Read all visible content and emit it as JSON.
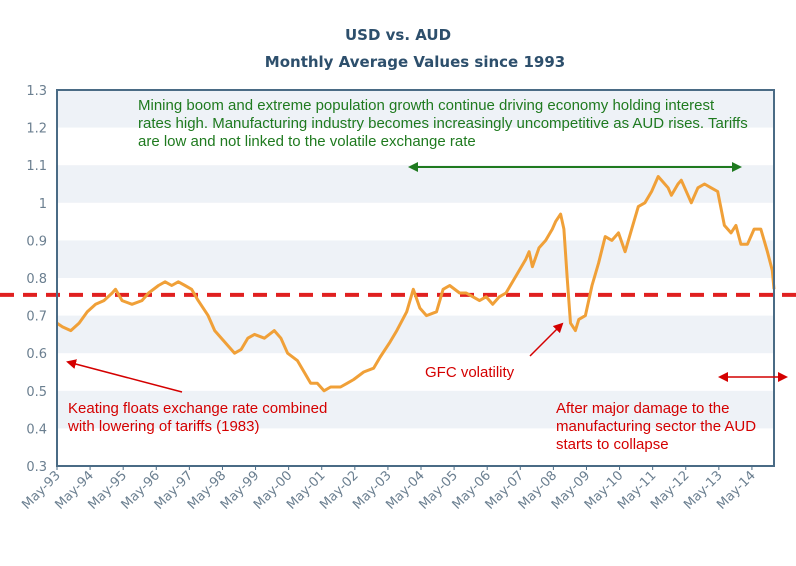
{
  "colors": {
    "line": "#f0a038",
    "threshold": "#e02020",
    "green": "#1f7a1f",
    "red": "#d40000",
    "band": "#eef2f7",
    "axis": "#4a6b85",
    "title": "#2d4f6c"
  },
  "chart_data": {
    "type": "line",
    "title": "USD vs. AUD",
    "subtitle": "Monthly Average Values since 1993",
    "ylim": [
      0.3,
      1.3
    ],
    "yticks": [
      0.3,
      0.4,
      0.5,
      0.6,
      0.7,
      0.8,
      0.9,
      1,
      1.1,
      1.2,
      1.3
    ],
    "xlim": [
      1993.333,
      2015.0
    ],
    "xticks": [
      {
        "label": "May-93",
        "x": 1993.333
      },
      {
        "label": "May-94",
        "x": 1994.333
      },
      {
        "label": "May-95",
        "x": 1995.333
      },
      {
        "label": "May-96",
        "x": 1996.333
      },
      {
        "label": "May-97",
        "x": 1997.333
      },
      {
        "label": "May-98",
        "x": 1998.333
      },
      {
        "label": "May-99",
        "x": 1999.333
      },
      {
        "label": "May-00",
        "x": 2000.333
      },
      {
        "label": "May-01",
        "x": 2001.333
      },
      {
        "label": "May-02",
        "x": 2002.333
      },
      {
        "label": "May-03",
        "x": 2003.333
      },
      {
        "label": "May-04",
        "x": 2004.333
      },
      {
        "label": "May-05",
        "x": 2005.333
      },
      {
        "label": "May-06",
        "x": 2006.333
      },
      {
        "label": "May-07",
        "x": 2007.333
      },
      {
        "label": "May-08",
        "x": 2008.333
      },
      {
        "label": "May-09",
        "x": 2009.333
      },
      {
        "label": "May-10",
        "x": 2010.333
      },
      {
        "label": "May-11",
        "x": 2011.333
      },
      {
        "label": "May-12",
        "x": 2012.333
      },
      {
        "label": "May-13",
        "x": 2013.333
      },
      {
        "label": "May-14",
        "x": 2014.333
      }
    ],
    "grid": "alternating horizontal bands",
    "reference_line": {
      "y": 0.755,
      "style": "dashed"
    },
    "series": [
      {
        "points": [
          [
            1993.33,
            0.68
          ],
          [
            1993.5,
            0.67
          ],
          [
            1993.75,
            0.66
          ],
          [
            1994.0,
            0.68
          ],
          [
            1994.25,
            0.71
          ],
          [
            1994.5,
            0.73
          ],
          [
            1994.75,
            0.74
          ],
          [
            1995.0,
            0.76
          ],
          [
            1995.1,
            0.77
          ],
          [
            1995.3,
            0.74
          ],
          [
            1995.6,
            0.73
          ],
          [
            1995.9,
            0.74
          ],
          [
            1996.1,
            0.76
          ],
          [
            1996.4,
            0.78
          ],
          [
            1996.6,
            0.79
          ],
          [
            1996.8,
            0.78
          ],
          [
            1997.0,
            0.79
          ],
          [
            1997.2,
            0.78
          ],
          [
            1997.4,
            0.77
          ],
          [
            1997.6,
            0.74
          ],
          [
            1997.9,
            0.7
          ],
          [
            1998.1,
            0.66
          ],
          [
            1998.3,
            0.64
          ],
          [
            1998.5,
            0.62
          ],
          [
            1998.7,
            0.6
          ],
          [
            1998.9,
            0.61
          ],
          [
            1999.1,
            0.64
          ],
          [
            1999.3,
            0.65
          ],
          [
            1999.6,
            0.64
          ],
          [
            1999.9,
            0.66
          ],
          [
            2000.1,
            0.64
          ],
          [
            2000.3,
            0.6
          ],
          [
            2000.6,
            0.58
          ],
          [
            2000.8,
            0.55
          ],
          [
            2001.0,
            0.52
          ],
          [
            2001.2,
            0.52
          ],
          [
            2001.4,
            0.5
          ],
          [
            2001.6,
            0.51
          ],
          [
            2001.9,
            0.51
          ],
          [
            2002.1,
            0.52
          ],
          [
            2002.3,
            0.53
          ],
          [
            2002.6,
            0.55
          ],
          [
            2002.9,
            0.56
          ],
          [
            2003.1,
            0.59
          ],
          [
            2003.4,
            0.63
          ],
          [
            2003.6,
            0.66
          ],
          [
            2003.9,
            0.71
          ],
          [
            2004.1,
            0.77
          ],
          [
            2004.3,
            0.72
          ],
          [
            2004.5,
            0.7
          ],
          [
            2004.8,
            0.71
          ],
          [
            2005.0,
            0.77
          ],
          [
            2005.2,
            0.78
          ],
          [
            2005.5,
            0.76
          ],
          [
            2005.7,
            0.76
          ],
          [
            2005.9,
            0.75
          ],
          [
            2006.1,
            0.74
          ],
          [
            2006.3,
            0.75
          ],
          [
            2006.5,
            0.73
          ],
          [
            2006.7,
            0.75
          ],
          [
            2006.9,
            0.76
          ],
          [
            2007.1,
            0.79
          ],
          [
            2007.3,
            0.82
          ],
          [
            2007.5,
            0.85
          ],
          [
            2007.6,
            0.87
          ],
          [
            2007.7,
            0.83
          ],
          [
            2007.9,
            0.88
          ],
          [
            2008.1,
            0.9
          ],
          [
            2008.3,
            0.93
          ],
          [
            2008.4,
            0.95
          ],
          [
            2008.55,
            0.97
          ],
          [
            2008.65,
            0.93
          ],
          [
            2008.75,
            0.8
          ],
          [
            2008.85,
            0.68
          ],
          [
            2009.0,
            0.66
          ],
          [
            2009.1,
            0.69
          ],
          [
            2009.3,
            0.7
          ],
          [
            2009.5,
            0.78
          ],
          [
            2009.7,
            0.84
          ],
          [
            2009.9,
            0.91
          ],
          [
            2010.1,
            0.9
          ],
          [
            2010.3,
            0.92
          ],
          [
            2010.5,
            0.87
          ],
          [
            2010.7,
            0.93
          ],
          [
            2010.9,
            0.99
          ],
          [
            2011.1,
            1.0
          ],
          [
            2011.3,
            1.03
          ],
          [
            2011.5,
            1.07
          ],
          [
            2011.6,
            1.06
          ],
          [
            2011.8,
            1.04
          ],
          [
            2011.9,
            1.02
          ],
          [
            2012.1,
            1.05
          ],
          [
            2012.2,
            1.06
          ],
          [
            2012.4,
            1.02
          ],
          [
            2012.5,
            1.0
          ],
          [
            2012.7,
            1.04
          ],
          [
            2012.9,
            1.05
          ],
          [
            2013.1,
            1.04
          ],
          [
            2013.3,
            1.03
          ],
          [
            2013.5,
            0.94
          ],
          [
            2013.7,
            0.92
          ],
          [
            2013.85,
            0.94
          ],
          [
            2014.0,
            0.89
          ],
          [
            2014.2,
            0.89
          ],
          [
            2014.4,
            0.93
          ],
          [
            2014.6,
            0.93
          ],
          [
            2014.8,
            0.87
          ],
          [
            2014.95,
            0.82
          ],
          [
            2015.0,
            0.77
          ]
        ]
      }
    ],
    "annotations": [
      {
        "id": "mining",
        "text": "Mining boom and extreme population growth continue driving economy holding interest rates high. Manufacturing industry becomes increasingly uncompetitive as AUD rises. Tariffs are low and not linked to the volatile exchange rate",
        "color": "green"
      },
      {
        "id": "keating",
        "text": "Keating floats exchange rate combined with lowering of tariffs (1983)",
        "color": "red"
      },
      {
        "id": "gfc",
        "text": "GFC volatility",
        "color": "red"
      },
      {
        "id": "collapse",
        "text": "After major damage to the manufacturing sector the AUD starts to collapse",
        "color": "red"
      }
    ]
  }
}
